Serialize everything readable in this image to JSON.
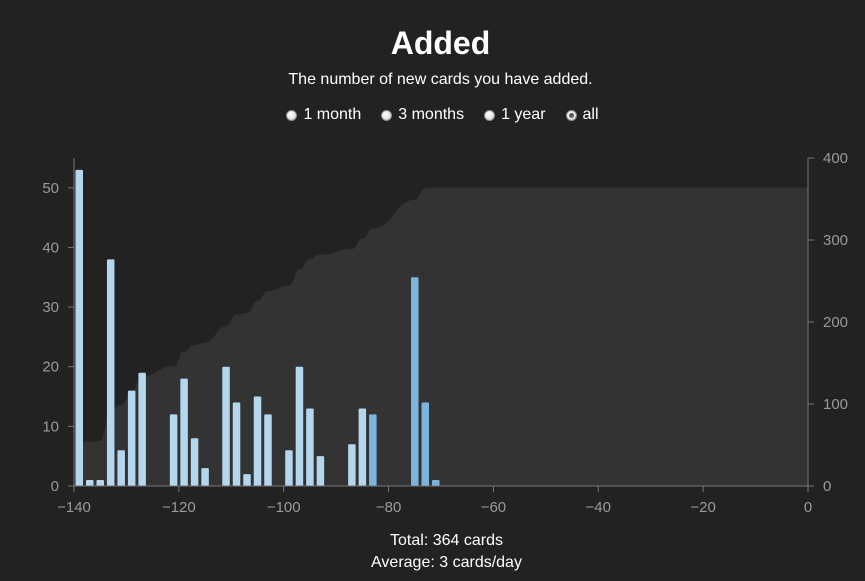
{
  "header": {
    "title": "Added",
    "subtitle": "The number of new cards you have added."
  },
  "ranges": [
    {
      "label": "1 month",
      "checked": false
    },
    {
      "label": "3 months",
      "checked": false
    },
    {
      "label": "1 year",
      "checked": false
    },
    {
      "label": "all",
      "checked": true
    }
  ],
  "footer": {
    "total": "Total: 364 cards",
    "average": "Average: 3 cards/day"
  },
  "colors": {
    "background": "#222222",
    "area": "#333333",
    "bar_light": "#b5d7ee",
    "bar_dark": "#7cb4dc",
    "axis": "#777777"
  },
  "chart_data": {
    "type": "bar",
    "title": "Added",
    "subtitle": "The number of new cards you have added.",
    "x_ticks": [
      -140,
      -120,
      -100,
      -80,
      -60,
      -40,
      -20,
      0
    ],
    "xlim": [
      -140,
      0
    ],
    "y_left_ticks": [
      0,
      10,
      20,
      30,
      40,
      50
    ],
    "ylim_left": [
      0,
      55
    ],
    "y_right_ticks": [
      0,
      100,
      200,
      300,
      400
    ],
    "ylim_right": [
      0,
      400
    ],
    "bars": [
      {
        "x": -139,
        "value": 53
      },
      {
        "x": -137,
        "value": 1
      },
      {
        "x": -135,
        "value": 1
      },
      {
        "x": -133,
        "value": 38
      },
      {
        "x": -131,
        "value": 6
      },
      {
        "x": -129,
        "value": 16
      },
      {
        "x": -127,
        "value": 19
      },
      {
        "x": -121,
        "value": 12
      },
      {
        "x": -119,
        "value": 18
      },
      {
        "x": -117,
        "value": 8
      },
      {
        "x": -115,
        "value": 3
      },
      {
        "x": -111,
        "value": 20
      },
      {
        "x": -109,
        "value": 14
      },
      {
        "x": -107,
        "value": 2
      },
      {
        "x": -105,
        "value": 15
      },
      {
        "x": -103,
        "value": 12
      },
      {
        "x": -99,
        "value": 6
      },
      {
        "x": -97,
        "value": 20
      },
      {
        "x": -95,
        "value": 13
      },
      {
        "x": -93,
        "value": 5
      },
      {
        "x": -87,
        "value": 7
      },
      {
        "x": -85,
        "value": 13
      },
      {
        "x": -83,
        "value": 12
      },
      {
        "x": -75,
        "value": 35
      },
      {
        "x": -73,
        "value": 14
      },
      {
        "x": -71,
        "value": 1
      }
    ],
    "cumulative_series": {
      "note_axis": "right",
      "x": [
        -140,
        -139,
        -137,
        -135,
        -133,
        -131,
        -129,
        -127,
        -121,
        -119,
        -117,
        -115,
        -111,
        -109,
        -107,
        -105,
        -103,
        -99,
        -97,
        -95,
        -93,
        -87,
        -85,
        -83,
        -75,
        -73,
        -71,
        -70,
        0
      ],
      "values": [
        0,
        53,
        54,
        55,
        93,
        99,
        115,
        134,
        146,
        164,
        172,
        175,
        195,
        209,
        211,
        226,
        238,
        244,
        264,
        277,
        282,
        289,
        302,
        314,
        349,
        363,
        364,
        364,
        364
      ]
    }
  }
}
